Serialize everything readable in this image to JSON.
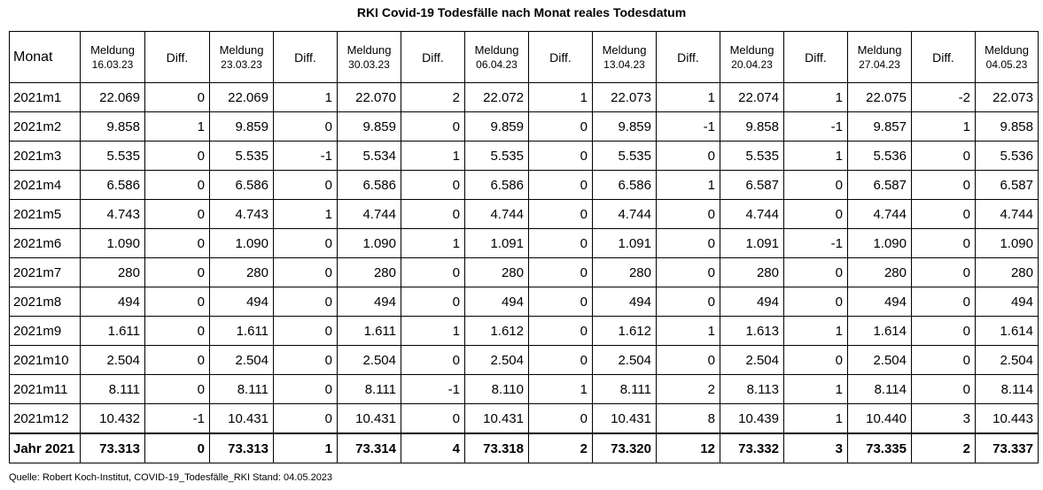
{
  "title": "RKI Covid-19 Todesfälle nach Monat reales Todesdatum",
  "header": {
    "monat": "Monat",
    "columns": [
      {
        "type": "meldung",
        "line1": "Meldung",
        "line2": "16.03.23"
      },
      {
        "type": "diff",
        "label": "Diff."
      },
      {
        "type": "meldung",
        "line1": "Meldung",
        "line2": "23.03.23"
      },
      {
        "type": "diff",
        "label": "Diff."
      },
      {
        "type": "meldung",
        "line1": "Meldung",
        "line2": "30.03.23"
      },
      {
        "type": "diff",
        "label": "Diff."
      },
      {
        "type": "meldung",
        "line1": "Meldung",
        "line2": "06.04.23"
      },
      {
        "type": "diff",
        "label": "Diff."
      },
      {
        "type": "meldung",
        "line1": "Meldung",
        "line2": "13.04.23"
      },
      {
        "type": "diff",
        "label": "Diff."
      },
      {
        "type": "meldung",
        "line1": "Meldung",
        "line2": "20.04.23"
      },
      {
        "type": "diff",
        "label": "Diff."
      },
      {
        "type": "meldung",
        "line1": "Meldung",
        "line2": "27.04.23"
      },
      {
        "type": "diff",
        "label": "Diff."
      },
      {
        "type": "meldung",
        "line1": "Meldung",
        "line2": "04.05.23"
      }
    ]
  },
  "rows": [
    {
      "label": "2021m1",
      "cells": [
        "22.069",
        "0",
        "22.069",
        "1",
        "22.070",
        "2",
        "22.072",
        "1",
        "22.073",
        "1",
        "22.074",
        "1",
        "22.075",
        "-2",
        "22.073"
      ]
    },
    {
      "label": "2021m2",
      "cells": [
        "9.858",
        "1",
        "9.859",
        "0",
        "9.859",
        "0",
        "9.859",
        "0",
        "9.859",
        "-1",
        "9.858",
        "-1",
        "9.857",
        "1",
        "9.858"
      ]
    },
    {
      "label": "2021m3",
      "cells": [
        "5.535",
        "0",
        "5.535",
        "-1",
        "5.534",
        "1",
        "5.535",
        "0",
        "5.535",
        "0",
        "5.535",
        "1",
        "5.536",
        "0",
        "5.536"
      ]
    },
    {
      "label": "2021m4",
      "cells": [
        "6.586",
        "0",
        "6.586",
        "0",
        "6.586",
        "0",
        "6.586",
        "0",
        "6.586",
        "1",
        "6.587",
        "0",
        "6.587",
        "0",
        "6.587"
      ]
    },
    {
      "label": "2021m5",
      "cells": [
        "4.743",
        "0",
        "4.743",
        "1",
        "4.744",
        "0",
        "4.744",
        "0",
        "4.744",
        "0",
        "4.744",
        "0",
        "4.744",
        "0",
        "4.744"
      ]
    },
    {
      "label": "2021m6",
      "cells": [
        "1.090",
        "0",
        "1.090",
        "0",
        "1.090",
        "1",
        "1.091",
        "0",
        "1.091",
        "0",
        "1.091",
        "-1",
        "1.090",
        "0",
        "1.090"
      ]
    },
    {
      "label": "2021m7",
      "cells": [
        "280",
        "0",
        "280",
        "0",
        "280",
        "0",
        "280",
        "0",
        "280",
        "0",
        "280",
        "0",
        "280",
        "0",
        "280"
      ]
    },
    {
      "label": "2021m8",
      "cells": [
        "494",
        "0",
        "494",
        "0",
        "494",
        "0",
        "494",
        "0",
        "494",
        "0",
        "494",
        "0",
        "494",
        "0",
        "494"
      ]
    },
    {
      "label": "2021m9",
      "cells": [
        "1.611",
        "0",
        "1.611",
        "0",
        "1.611",
        "1",
        "1.612",
        "0",
        "1.612",
        "1",
        "1.613",
        "1",
        "1.614",
        "0",
        "1.614"
      ]
    },
    {
      "label": "2021m10",
      "cells": [
        "2.504",
        "0",
        "2.504",
        "0",
        "2.504",
        "0",
        "2.504",
        "0",
        "2.504",
        "0",
        "2.504",
        "0",
        "2.504",
        "0",
        "2.504"
      ]
    },
    {
      "label": "2021m11",
      "cells": [
        "8.111",
        "0",
        "8.111",
        "0",
        "8.111",
        "-1",
        "8.110",
        "1",
        "8.111",
        "2",
        "8.113",
        "1",
        "8.114",
        "0",
        "8.114"
      ]
    },
    {
      "label": "2021m12",
      "cells": [
        "10.432",
        "-1",
        "10.431",
        "0",
        "10.431",
        "0",
        "10.431",
        "0",
        "10.431",
        "8",
        "10.439",
        "1",
        "10.440",
        "3",
        "10.443"
      ]
    }
  ],
  "total": {
    "label": "Jahr 2021",
    "cells": [
      "73.313",
      "0",
      "73.313",
      "1",
      "73.314",
      "4",
      "73.318",
      "2",
      "73.320",
      "12",
      "73.332",
      "3",
      "73.335",
      "2",
      "73.337"
    ]
  },
  "source": "Quelle: Robert Koch-Institut, COVID-19_Todesfälle_RKI Stand: 04.05.2023"
}
